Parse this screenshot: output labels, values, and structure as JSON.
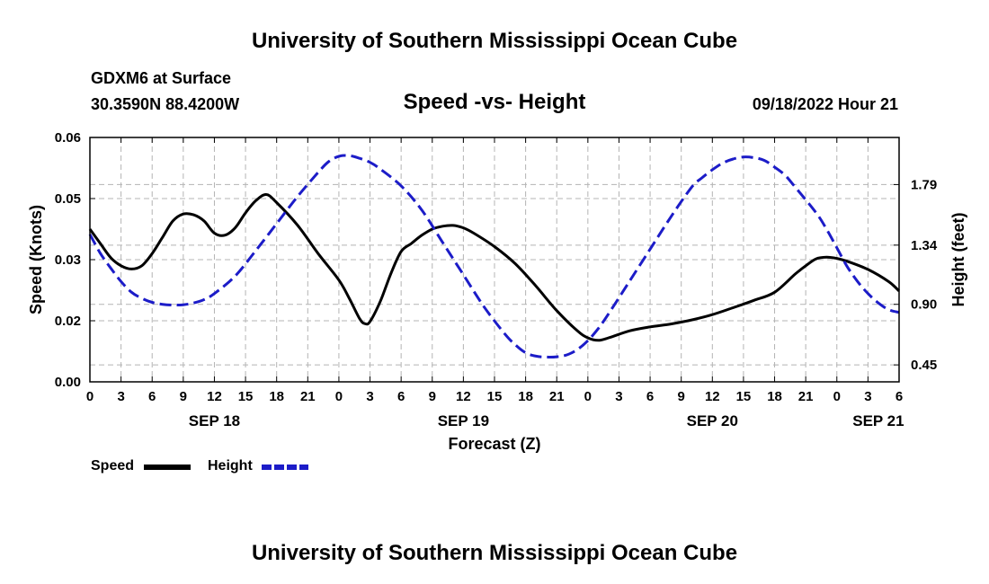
{
  "page_title": "University of Southern Mississippi Ocean Cube",
  "footer_title": "University of Southern Mississippi Ocean Cube",
  "station": "GDXM6 at Surface",
  "location": "30.3590N  88.4200W",
  "valid_time": "09/18/2022 Hour 21",
  "legend": {
    "speed_label": "Speed",
    "height_label": "Height"
  },
  "colors": {
    "speed": "#000000",
    "height": "#1c1cc8",
    "grid": "#b4b4b4"
  },
  "chart_data": {
    "type": "line",
    "title": "Speed -vs- Height",
    "xlabel": "Forecast (Z)",
    "ylabel": "Speed (Knots)",
    "y2label": "Height (feet)",
    "x_range": [
      0,
      78
    ],
    "ylim": [
      0,
      0.06
    ],
    "y2lim": [
      0.324,
      2.14
    ],
    "y_ticks": [
      {
        "value": 0.0,
        "label": "0.00"
      },
      {
        "value": 0.015,
        "label": "0.02"
      },
      {
        "value": 0.03,
        "label": "0.03"
      },
      {
        "value": 0.045,
        "label": "0.05"
      },
      {
        "value": 0.06,
        "label": "0.06"
      }
    ],
    "y2_ticks": [
      {
        "value": 0.45,
        "label": "0.45"
      },
      {
        "value": 0.9,
        "label": "0.90"
      },
      {
        "value": 1.34,
        "label": "1.34"
      },
      {
        "value": 1.79,
        "label": "1.79"
      }
    ],
    "x_ticks": [
      {
        "hour": 0,
        "label": "0"
      },
      {
        "hour": 3,
        "label": "3"
      },
      {
        "hour": 6,
        "label": "6"
      },
      {
        "hour": 9,
        "label": "9"
      },
      {
        "hour": 12,
        "label": "12"
      },
      {
        "hour": 15,
        "label": "15"
      },
      {
        "hour": 18,
        "label": "18"
      },
      {
        "hour": 21,
        "label": "21"
      },
      {
        "hour": 24,
        "label": "0"
      },
      {
        "hour": 27,
        "label": "3"
      },
      {
        "hour": 30,
        "label": "6"
      },
      {
        "hour": 33,
        "label": "9"
      },
      {
        "hour": 36,
        "label": "12"
      },
      {
        "hour": 39,
        "label": "15"
      },
      {
        "hour": 42,
        "label": "18"
      },
      {
        "hour": 45,
        "label": "21"
      },
      {
        "hour": 48,
        "label": "0"
      },
      {
        "hour": 51,
        "label": "3"
      },
      {
        "hour": 54,
        "label": "6"
      },
      {
        "hour": 57,
        "label": "9"
      },
      {
        "hour": 60,
        "label": "12"
      },
      {
        "hour": 63,
        "label": "15"
      },
      {
        "hour": 66,
        "label": "18"
      },
      {
        "hour": 69,
        "label": "21"
      },
      {
        "hour": 72,
        "label": "0"
      },
      {
        "hour": 75,
        "label": "3"
      },
      {
        "hour": 78,
        "label": "6"
      }
    ],
    "date_labels": [
      {
        "hour": 12,
        "label": "SEP 18"
      },
      {
        "hour": 36,
        "label": "SEP 19"
      },
      {
        "hour": 60,
        "label": "SEP 20"
      },
      {
        "hour": 76,
        "label": "SEP 21"
      }
    ],
    "series": [
      {
        "name": "Speed",
        "axis": "left",
        "points": [
          [
            0,
            0.0375
          ],
          [
            1,
            0.034
          ],
          [
            2,
            0.0305
          ],
          [
            3,
            0.0285
          ],
          [
            4,
            0.0277
          ],
          [
            5,
            0.0285
          ],
          [
            6,
            0.0315
          ],
          [
            7,
            0.0355
          ],
          [
            8,
            0.0395
          ],
          [
            9,
            0.0412
          ],
          [
            10,
            0.041
          ],
          [
            11,
            0.0395
          ],
          [
            12,
            0.0365
          ],
          [
            13,
            0.036
          ],
          [
            14,
            0.0378
          ],
          [
            15,
            0.0415
          ],
          [
            16,
            0.0445
          ],
          [
            17,
            0.046
          ],
          [
            18,
            0.044
          ],
          [
            20,
            0.0385
          ],
          [
            22,
            0.0315
          ],
          [
            24,
            0.025
          ],
          [
            25,
            0.0205
          ],
          [
            26,
            0.0155
          ],
          [
            26.5,
            0.0143
          ],
          [
            27,
            0.0148
          ],
          [
            28,
            0.0198
          ],
          [
            29,
            0.0265
          ],
          [
            30,
            0.032
          ],
          [
            31,
            0.034
          ],
          [
            32,
            0.036
          ],
          [
            33,
            0.0375
          ],
          [
            34,
            0.0382
          ],
          [
            35,
            0.0384
          ],
          [
            36,
            0.0378
          ],
          [
            37,
            0.0365
          ],
          [
            39,
            0.0332
          ],
          [
            41,
            0.029
          ],
          [
            43,
            0.0235
          ],
          [
            45,
            0.0175
          ],
          [
            47,
            0.0125
          ],
          [
            48,
            0.0108
          ],
          [
            49,
            0.0102
          ],
          [
            50,
            0.0108
          ],
          [
            52,
            0.0125
          ],
          [
            54,
            0.0135
          ],
          [
            56,
            0.0142
          ],
          [
            58,
            0.0152
          ],
          [
            60,
            0.0165
          ],
          [
            62,
            0.0182
          ],
          [
            64,
            0.02
          ],
          [
            66,
            0.022
          ],
          [
            68,
            0.0265
          ],
          [
            69,
            0.0285
          ],
          [
            70,
            0.0302
          ],
          [
            71,
            0.0306
          ],
          [
            72,
            0.0303
          ],
          [
            73,
            0.0296
          ],
          [
            75,
            0.0276
          ],
          [
            77,
            0.0246
          ],
          [
            78,
            0.0223
          ]
        ]
      },
      {
        "name": "Height",
        "axis": "right",
        "points": [
          [
            0,
            1.42
          ],
          [
            1,
            1.28
          ],
          [
            2,
            1.17
          ],
          [
            3,
            1.07
          ],
          [
            4,
            0.99
          ],
          [
            5,
            0.945
          ],
          [
            6,
            0.915
          ],
          [
            7,
            0.9
          ],
          [
            8,
            0.895
          ],
          [
            9,
            0.897
          ],
          [
            10,
            0.91
          ],
          [
            11,
            0.935
          ],
          [
            12,
            0.98
          ],
          [
            14,
            1.11
          ],
          [
            16,
            1.3
          ],
          [
            18,
            1.5
          ],
          [
            20,
            1.7
          ],
          [
            22,
            1.88
          ],
          [
            23,
            1.96
          ],
          [
            24,
            2.0
          ],
          [
            25,
            2.005
          ],
          [
            26,
            1.985
          ],
          [
            27,
            1.955
          ],
          [
            28,
            1.905
          ],
          [
            30,
            1.78
          ],
          [
            32,
            1.6
          ],
          [
            34,
            1.36
          ],
          [
            36,
            1.12
          ],
          [
            38,
            0.88
          ],
          [
            40,
            0.68
          ],
          [
            41,
            0.6
          ],
          [
            42,
            0.54
          ],
          [
            43,
            0.515
          ],
          [
            44,
            0.508
          ],
          [
            45,
            0.51
          ],
          [
            46,
            0.525
          ],
          [
            47,
            0.565
          ],
          [
            48,
            0.63
          ],
          [
            49,
            0.72
          ],
          [
            50,
            0.83
          ],
          [
            52,
            1.07
          ],
          [
            54,
            1.31
          ],
          [
            56,
            1.55
          ],
          [
            58,
            1.77
          ],
          [
            59,
            1.84
          ],
          [
            60,
            1.9
          ],
          [
            61,
            1.95
          ],
          [
            62,
            1.98
          ],
          [
            63,
            1.995
          ],
          [
            64,
            1.99
          ],
          [
            65,
            1.97
          ],
          [
            66,
            1.92
          ],
          [
            67,
            1.86
          ],
          [
            68,
            1.77
          ],
          [
            70,
            1.58
          ],
          [
            71,
            1.46
          ],
          [
            72,
            1.32
          ],
          [
            73,
            1.18
          ],
          [
            74,
            1.07
          ],
          [
            75,
            0.98
          ],
          [
            76,
            0.91
          ],
          [
            77,
            0.86
          ],
          [
            78,
            0.84
          ]
        ]
      }
    ]
  }
}
